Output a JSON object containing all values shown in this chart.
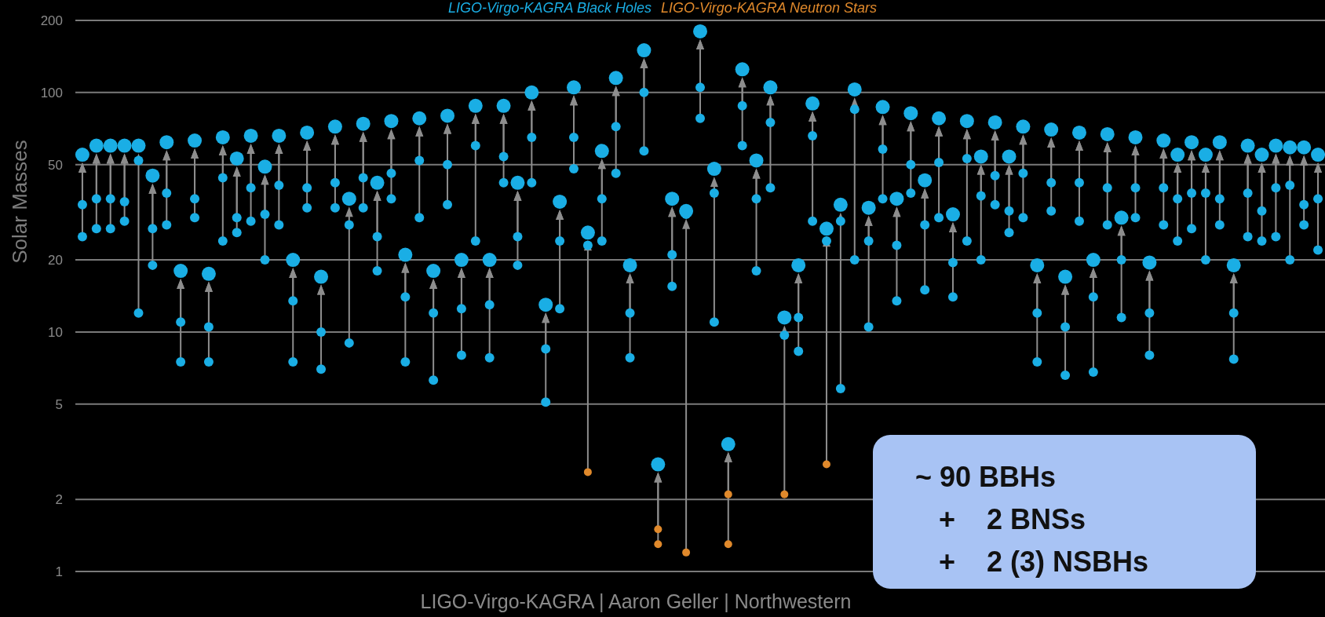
{
  "chart_data": {
    "type": "scatter",
    "ylabel": "Solar Masses",
    "log": true,
    "ylim": [
      1,
      200
    ],
    "yticks": [
      1,
      2,
      5,
      10,
      20,
      50,
      100,
      200
    ],
    "grid": "y",
    "tick_labels": "y",
    "legend": "top",
    "marker": "circle",
    "categories": [
      null,
      null,
      null,
      null,
      null,
      null,
      null,
      null,
      null,
      null,
      null,
      null,
      null,
      null,
      null,
      null,
      null,
      null,
      null,
      null,
      null,
      null,
      null,
      null,
      null,
      null,
      null,
      null,
      null,
      null,
      null,
      null,
      null,
      null,
      null,
      null,
      null,
      null,
      null,
      null,
      null,
      null,
      null,
      null,
      null,
      null,
      null,
      null,
      null,
      null,
      null,
      null,
      null,
      null,
      null,
      null,
      null,
      null,
      null,
      null,
      null,
      null,
      null,
      null,
      null,
      null,
      null,
      null,
      null,
      null,
      null,
      null,
      null,
      null,
      null,
      null,
      null,
      null,
      null,
      null,
      null,
      null,
      null,
      null,
      null,
      null,
      null,
      null,
      null
    ],
    "series": [
      {
        "name": "LIGO-Virgo-KAGRA Black Holes",
        "color": "#1aaee5",
        "values": [
          55,
          60,
          60,
          60,
          60,
          45,
          62,
          18,
          63,
          17.5,
          65,
          53,
          66,
          49,
          66,
          20,
          68,
          17,
          72,
          36,
          74,
          42,
          76,
          21,
          78,
          18,
          80,
          20,
          88,
          20,
          88,
          42,
          100,
          13,
          35,
          105,
          26,
          57,
          115,
          19,
          150,
          2.8,
          36,
          32,
          180,
          48,
          3.4,
          125,
          52,
          105,
          11.5,
          19,
          90,
          27,
          34,
          103,
          33,
          87,
          36,
          82,
          43,
          78,
          31,
          76,
          54,
          75,
          54,
          72,
          19,
          70,
          17,
          68,
          20,
          67,
          30,
          65,
          19.5,
          63,
          55,
          62,
          55,
          62,
          19,
          60,
          55,
          60,
          59,
          59,
          55
        ]
      },
      {
        "color": "#1aaee5",
        "values": [
          34,
          36,
          36,
          35,
          52,
          27,
          38,
          11,
          36,
          10.5,
          44,
          30,
          40,
          31,
          41,
          13.5,
          40,
          10,
          42,
          28,
          44,
          25,
          46,
          14,
          52,
          12,
          50,
          12.5,
          60,
          13,
          54,
          25,
          65,
          8.5,
          24,
          65,
          23,
          36,
          72,
          12,
          100,
          null,
          21,
          31,
          105,
          38,
          null,
          88,
          36,
          75,
          9.7,
          11.5,
          66,
          24,
          29,
          85,
          24,
          58,
          23,
          50,
          28,
          51,
          19.5,
          53,
          37,
          45,
          32,
          46,
          12,
          42,
          10.5,
          42,
          14,
          40,
          20,
          40,
          12,
          40,
          36,
          38,
          38,
          36,
          12,
          38,
          32,
          40,
          41,
          34,
          36
        ]
      },
      {
        "color": "#1aaee5",
        "values": [
          25,
          27,
          27,
          29,
          12,
          19,
          28,
          7.5,
          30,
          7.5,
          24,
          26,
          29,
          20,
          28,
          7.5,
          33,
          7,
          33,
          9,
          33,
          18,
          36,
          7.5,
          30,
          6.3,
          34,
          8,
          24,
          7.8,
          42,
          19,
          42,
          5.1,
          12.5,
          48,
          null,
          24,
          46,
          7.8,
          57,
          null,
          15.5,
          null,
          78,
          11,
          null,
          60,
          18,
          40,
          null,
          8.3,
          29,
          null,
          5.8,
          20,
          10.5,
          36,
          13.5,
          38,
          15,
          30,
          14,
          24,
          20,
          34,
          26,
          30,
          7.5,
          32,
          6.6,
          29,
          6.8,
          28,
          11.5,
          30,
          8,
          28,
          24,
          27,
          20,
          28,
          7.7,
          25,
          24,
          25,
          20,
          28,
          22
        ]
      },
      {
        "name": "LIGO-Virgo-KAGRA Neutron Stars",
        "color": "#e0892b",
        "values": [
          null,
          null,
          null,
          null,
          null,
          null,
          null,
          null,
          null,
          null,
          null,
          null,
          null,
          null,
          null,
          null,
          null,
          null,
          null,
          null,
          null,
          null,
          null,
          null,
          null,
          null,
          null,
          null,
          null,
          null,
          null,
          null,
          null,
          null,
          null,
          null,
          null,
          null,
          null,
          null,
          null,
          1.5,
          null,
          null,
          null,
          null,
          2.1,
          null,
          null,
          null,
          null,
          null,
          null,
          null,
          null,
          null,
          null,
          null,
          null,
          null,
          null,
          null,
          null,
          null,
          null,
          null,
          null,
          null,
          null,
          null,
          null,
          null,
          null,
          null,
          null,
          null,
          null,
          null,
          null,
          null,
          null,
          null,
          null,
          null,
          null,
          null,
          null,
          null,
          null
        ]
      },
      {
        "color": "#e0892b",
        "values": [
          null,
          null,
          null,
          null,
          null,
          null,
          null,
          null,
          null,
          null,
          null,
          null,
          null,
          null,
          null,
          null,
          null,
          null,
          null,
          null,
          null,
          null,
          null,
          null,
          null,
          null,
          null,
          null,
          null,
          null,
          null,
          null,
          null,
          null,
          null,
          null,
          2.6,
          null,
          null,
          null,
          null,
          1.3,
          null,
          1.2,
          null,
          null,
          1.3,
          null,
          null,
          null,
          2.1,
          null,
          null,
          2.8,
          null,
          null,
          null,
          null,
          null,
          null,
          null,
          null,
          null,
          null,
          null,
          null,
          null,
          null,
          null,
          null,
          null,
          null,
          null,
          null,
          null,
          null,
          null,
          null,
          null,
          null,
          null,
          null,
          null,
          null,
          null,
          null,
          null,
          null,
          null
        ]
      }
    ],
    "annotations": [
      "~ 90 BBHs",
      "+    2 BNSs",
      "+    2 (3) NSBHs",
      "LIGO-Virgo-KAGRA | Aaron Geller | Northwestern"
    ]
  }
}
